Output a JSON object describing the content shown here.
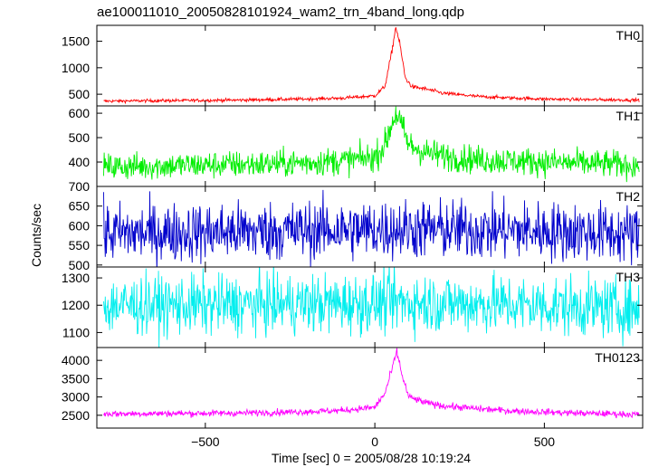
{
  "chart_data": {
    "type": "line",
    "title": "ae100011010_20050828101924_wam2_trn_4band_long.qdp",
    "xlabel": "Time [sec] 0 = 2005/08/28 10:19:24",
    "ylabel": "Counts/sec",
    "xlim": [
      -820,
      790
    ],
    "x_ticks": [
      -500,
      0,
      500
    ],
    "x_tick_labels": [
      "−500",
      "0",
      "500"
    ],
    "series": [
      {
        "name": "TH0",
        "color": "#ff0000",
        "ylim": [
          280,
          1800
        ],
        "y_ticks": [
          500,
          1000,
          1500
        ],
        "y_tick_labels": [
          "500",
          "1000",
          "1500"
        ],
        "points": [
          [
            -800,
            370
          ],
          [
            -700,
            375
          ],
          [
            -600,
            380
          ],
          [
            -500,
            385
          ],
          [
            -400,
            390
          ],
          [
            -300,
            400
          ],
          [
            -200,
            410
          ],
          [
            -100,
            425
          ],
          [
            0,
            470
          ],
          [
            30,
            650
          ],
          [
            50,
            1300
          ],
          [
            62,
            1780
          ],
          [
            75,
            1400
          ],
          [
            90,
            800
          ],
          [
            110,
            640
          ],
          [
            150,
            600
          ],
          [
            200,
            520
          ],
          [
            300,
            460
          ],
          [
            400,
            430
          ],
          [
            500,
            410
          ],
          [
            600,
            400
          ],
          [
            700,
            395
          ],
          [
            780,
            390
          ]
        ],
        "noise": 15
      },
      {
        "name": "TH1",
        "color": "#00ee00",
        "ylim": [
          300,
          630
        ],
        "y_ticks": [
          400,
          500,
          600
        ],
        "y_tick_labels": [
          "400",
          "500",
          "600"
        ],
        "points": [
          [
            -800,
            380
          ],
          [
            -700,
            382
          ],
          [
            -600,
            385
          ],
          [
            -500,
            388
          ],
          [
            -400,
            390
          ],
          [
            -300,
            392
          ],
          [
            -200,
            398
          ],
          [
            -100,
            405
          ],
          [
            0,
            420
          ],
          [
            30,
            470
          ],
          [
            55,
            580
          ],
          [
            65,
            600
          ],
          [
            80,
            540
          ],
          [
            100,
            470
          ],
          [
            150,
            440
          ],
          [
            200,
            425
          ],
          [
            300,
            410
          ],
          [
            400,
            405
          ],
          [
            500,
            400
          ],
          [
            600,
            395
          ],
          [
            700,
            392
          ],
          [
            780,
            385
          ]
        ],
        "noise": 28
      },
      {
        "name": "TH2",
        "color": "#0000cc",
        "ylim": [
          495,
          700
        ],
        "y_ticks": [
          500,
          550,
          600,
          650,
          700
        ],
        "y_tick_labels": [
          "500",
          "550",
          "600",
          "650",
          "700"
        ],
        "points": [
          [
            -800,
            580
          ],
          [
            -600,
            582
          ],
          [
            -400,
            585
          ],
          [
            -200,
            588
          ],
          [
            0,
            590
          ],
          [
            60,
            592
          ],
          [
            200,
            590
          ],
          [
            400,
            588
          ],
          [
            600,
            584
          ],
          [
            780,
            578
          ]
        ],
        "noise": 38
      },
      {
        "name": "TH3",
        "color": "#00eeee",
        "ylim": [
          1045,
          1340
        ],
        "y_ticks": [
          1100,
          1200,
          1300
        ],
        "y_tick_labels": [
          "1100",
          "1200",
          "1300"
        ],
        "points": [
          [
            -800,
            1200
          ],
          [
            -600,
            1200
          ],
          [
            -400,
            1202
          ],
          [
            -200,
            1205
          ],
          [
            0,
            1208
          ],
          [
            60,
            1212
          ],
          [
            200,
            1208
          ],
          [
            400,
            1202
          ],
          [
            600,
            1195
          ],
          [
            780,
            1185
          ]
        ],
        "noise": 55
      },
      {
        "name": "TH0123",
        "color": "#ff00ff",
        "ylim": [
          2150,
          4350
        ],
        "y_ticks": [
          2500,
          3000,
          3500,
          4000
        ],
        "y_tick_labels": [
          "2500",
          "3000",
          "3500",
          "4000"
        ],
        "points": [
          [
            -800,
            2540
          ],
          [
            -600,
            2550
          ],
          [
            -400,
            2560
          ],
          [
            -200,
            2600
          ],
          [
            -100,
            2630
          ],
          [
            0,
            2720
          ],
          [
            30,
            3100
          ],
          [
            55,
            3900
          ],
          [
            65,
            4250
          ],
          [
            80,
            3600
          ],
          [
            100,
            3000
          ],
          [
            150,
            2840
          ],
          [
            200,
            2760
          ],
          [
            300,
            2680
          ],
          [
            400,
            2620
          ],
          [
            500,
            2590
          ],
          [
            600,
            2560
          ],
          [
            700,
            2540
          ],
          [
            780,
            2520
          ]
        ],
        "noise": 45
      }
    ]
  }
}
